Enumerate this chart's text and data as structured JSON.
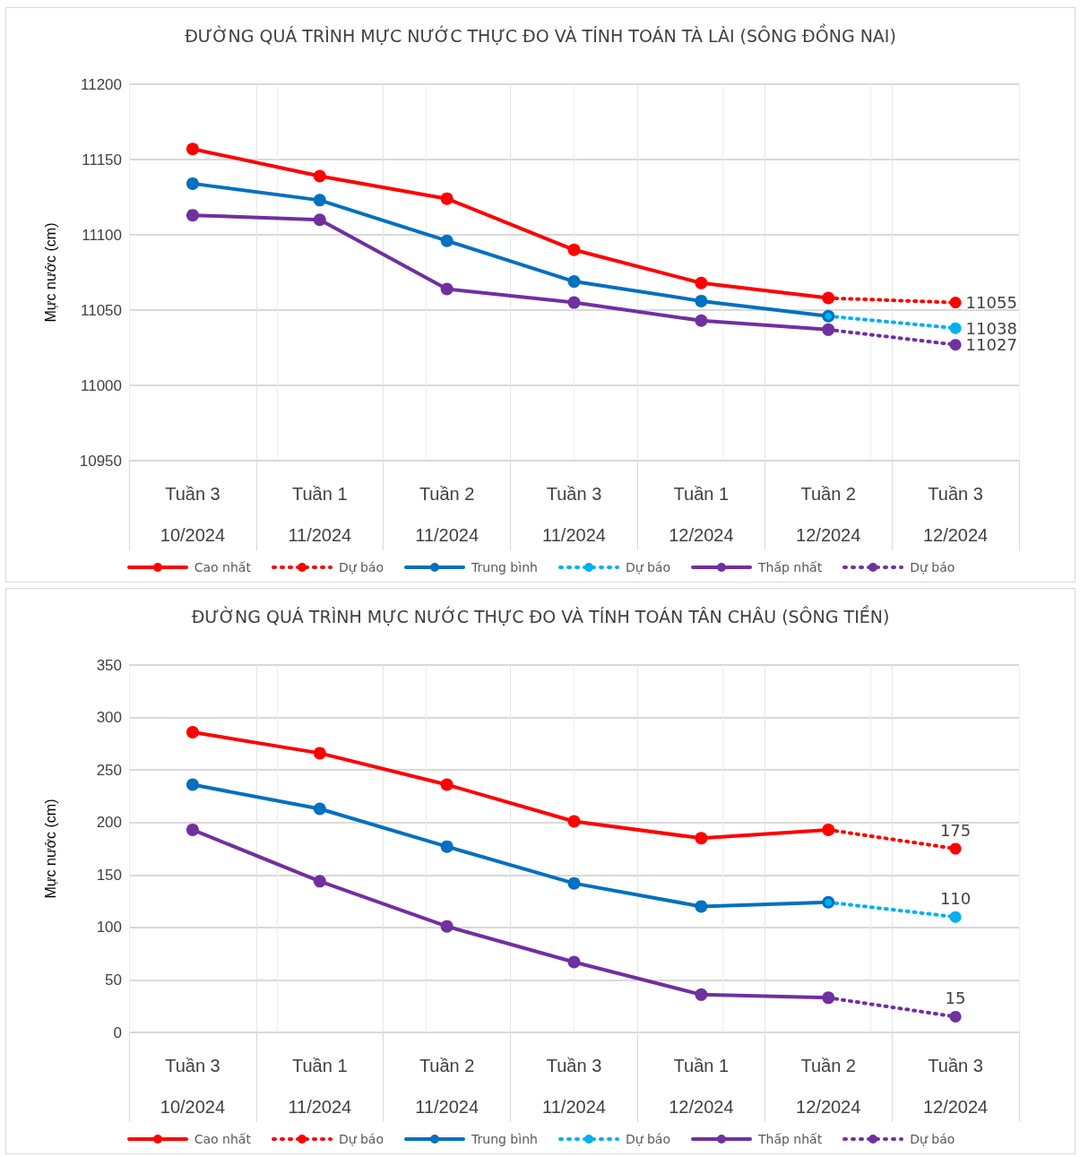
{
  "chart_data": [
    {
      "type": "line",
      "title": "ĐƯỜNG QUÁ TRÌNH MỰC NƯỚC THỰC ĐO VÀ TÍNH TOÁN TÀ LÀI (SÔNG ĐỒNG NAI)",
      "ylabel": "Mực nước (cm)",
      "categories": [
        "Tuần 3\n10/2024",
        "Tuần 1\n11/2024",
        "Tuần 2\n11/2024",
        "Tuần 3\n11/2024",
        "Tuần 1\n12/2024",
        "Tuần 2\n12/2024",
        "Tuần 3\n12/2024"
      ],
      "ylim": [
        10950,
        11200
      ],
      "yticks": [
        10950,
        11000,
        11050,
        11100,
        11150,
        11200
      ],
      "grid": true,
      "legend": "bottom",
      "marker": "circle",
      "series": [
        {
          "name": "Cao nhất",
          "color": "#ff0000",
          "line_style": "solid",
          "values": [
            11157,
            11139,
            11124,
            11090,
            11068,
            11058,
            null
          ]
        },
        {
          "name": "Dự báo",
          "color": "#ff0000",
          "line_style": "dotted",
          "values": [
            null,
            null,
            null,
            null,
            null,
            11058,
            11055
          ],
          "value_labels": [
            null,
            null,
            null,
            null,
            null,
            null,
            "11055"
          ]
        },
        {
          "name": "Trung bình",
          "color": "#0070c0",
          "line_style": "solid",
          "values": [
            11134,
            11123,
            11096,
            11069,
            11056,
            11046,
            null
          ]
        },
        {
          "name": "Dự báo",
          "color": "#00b0f0",
          "line_style": "dotted",
          "values": [
            null,
            null,
            null,
            null,
            null,
            11046,
            11038
          ],
          "value_labels": [
            null,
            null,
            null,
            null,
            null,
            null,
            "11038"
          ]
        },
        {
          "name": "Thấp nhất",
          "color": "#7030a0",
          "line_style": "solid",
          "values": [
            11113,
            11110,
            11064,
            11055,
            11043,
            11037,
            null
          ]
        },
        {
          "name": "Dự báo",
          "color": "#7030a0",
          "line_style": "dotted",
          "values": [
            null,
            null,
            null,
            null,
            null,
            11037,
            11027
          ],
          "value_labels": [
            null,
            null,
            null,
            null,
            null,
            null,
            "11027"
          ]
        }
      ]
    },
    {
      "type": "line",
      "title": "ĐƯỜNG QUÁ TRÌNH MỰC NƯỚC THỰC ĐO VÀ TÍNH TOÁN TÂN CHÂU (SÔNG TIỀN)",
      "ylabel": "Mực nước (cm)",
      "categories": [
        "Tuần 3\n10/2024",
        "Tuần 1\n11/2024",
        "Tuần 2\n11/2024",
        "Tuần 3\n11/2024",
        "Tuần 1\n12/2024",
        "Tuần 2\n12/2024",
        "Tuần 3\n12/2024"
      ],
      "ylim": [
        0,
        350
      ],
      "yticks": [
        0,
        50,
        100,
        150,
        200,
        250,
        300,
        350
      ],
      "grid": true,
      "legend": "bottom",
      "marker": "circle",
      "series": [
        {
          "name": "Cao nhất",
          "color": "#ff0000",
          "line_style": "solid",
          "values": [
            286,
            266,
            236,
            201,
            185,
            193,
            null
          ]
        },
        {
          "name": "Dự báo",
          "color": "#ff0000",
          "line_style": "dotted",
          "values": [
            null,
            null,
            null,
            null,
            null,
            193,
            175
          ],
          "value_labels": [
            null,
            null,
            null,
            null,
            null,
            null,
            "175"
          ]
        },
        {
          "name": "Trung bình",
          "color": "#0070c0",
          "line_style": "solid",
          "values": [
            236,
            213,
            177,
            142,
            120,
            124,
            null
          ]
        },
        {
          "name": "Dự báo",
          "color": "#00b0f0",
          "line_style": "dotted",
          "values": [
            null,
            null,
            null,
            null,
            null,
            124,
            110
          ],
          "value_labels": [
            null,
            null,
            null,
            null,
            null,
            null,
            "110"
          ]
        },
        {
          "name": "Thấp nhất",
          "color": "#7030a0",
          "line_style": "solid",
          "values": [
            193,
            144,
            101,
            67,
            36,
            33,
            null
          ]
        },
        {
          "name": "Dự báo",
          "color": "#7030a0",
          "line_style": "dotted",
          "values": [
            null,
            null,
            null,
            null,
            null,
            33,
            15
          ],
          "value_labels": [
            null,
            null,
            null,
            null,
            null,
            null,
            "15"
          ]
        }
      ]
    }
  ]
}
